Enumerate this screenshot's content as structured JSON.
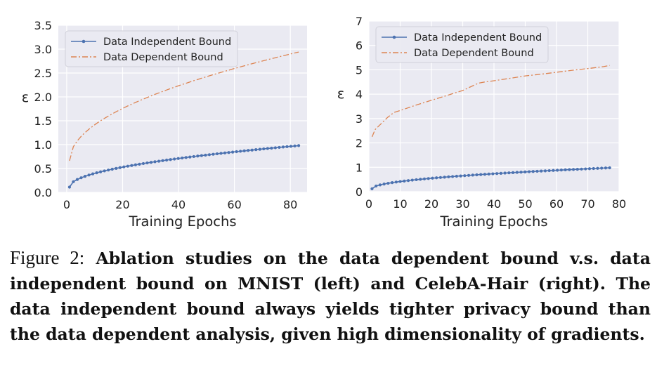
{
  "chart_data": [
    {
      "type": "line",
      "xlabel": "Training Epochs",
      "ylabel": "ε",
      "xlim": [
        -3,
        86
      ],
      "ylim": [
        0,
        3.5
      ],
      "xticks": [
        0,
        20,
        40,
        60,
        80
      ],
      "yticks": [
        0.0,
        0.5,
        1.0,
        1.5,
        2.0,
        2.5,
        3.0,
        3.5
      ],
      "ytick_labels": [
        "0.0",
        "0.5",
        "1.0",
        "1.5",
        "2.0",
        "2.5",
        "3.0",
        "3.5"
      ],
      "grid": true,
      "legend": "top-left",
      "series": [
        {
          "name": "Data Independent Bound",
          "style": "solid-dot",
          "color": "#4c72b0",
          "x_start": 1,
          "x_end": 83,
          "y_start": 0.11,
          "y_end": 0.98,
          "shape": "sqrt"
        },
        {
          "name": "Data Dependent Bound",
          "style": "dash-dot",
          "color": "#dd8452",
          "x_start": 1,
          "x_end": 83,
          "y_start": 0.66,
          "y_end": 2.94,
          "shape": "sqrt"
        }
      ]
    },
    {
      "type": "line",
      "xlabel": "Training Epochs",
      "ylabel": "ε",
      "xlim": [
        0,
        80
      ],
      "ylim": [
        0,
        7
      ],
      "xticks": [
        0,
        10,
        20,
        30,
        40,
        50,
        60,
        70,
        80
      ],
      "yticks": [
        0,
        1,
        2,
        3,
        4,
        5,
        6,
        7
      ],
      "ytick_labels": [
        "0",
        "1",
        "2",
        "3",
        "4",
        "5",
        "6",
        "7"
      ],
      "grid": true,
      "legend": "top-left",
      "series": [
        {
          "name": "Data Independent Bound",
          "style": "solid-dot",
          "color": "#4c72b0",
          "x_start": 1,
          "x_end": 77,
          "y_start": 0.12,
          "y_end": 0.98,
          "shape": "sqrt"
        },
        {
          "name": "Data Dependent Bound",
          "style": "dash-dot",
          "color": "#dd8452",
          "points": [
            [
              1,
              2.25
            ],
            [
              2,
              2.55
            ],
            [
              4,
              2.8
            ],
            [
              6,
              3.05
            ],
            [
              8,
              3.25
            ],
            [
              10,
              3.33
            ],
            [
              15,
              3.55
            ],
            [
              20,
              3.75
            ],
            [
              25,
              3.95
            ],
            [
              30,
              4.15
            ],
            [
              35,
              4.45
            ],
            [
              37,
              4.5
            ],
            [
              40,
              4.55
            ],
            [
              45,
              4.65
            ],
            [
              50,
              4.75
            ],
            [
              55,
              4.82
            ],
            [
              60,
              4.9
            ],
            [
              65,
              4.98
            ],
            [
              70,
              5.05
            ],
            [
              75,
              5.13
            ],
            [
              77,
              5.18
            ]
          ]
        }
      ]
    }
  ],
  "caption": {
    "label": "Figure 2:",
    "text": "Ablation studies on the data dependent bound v.s. data independent bound on MNIST (left) and CelebA-Hair (right). The data independent bound always yields tighter privacy bound than the data dependent analysis, given high dimensionality of gradients."
  },
  "colors": {
    "plot_bg": "#eaeaf2",
    "grid": "#ffffff",
    "text": "#222222"
  }
}
